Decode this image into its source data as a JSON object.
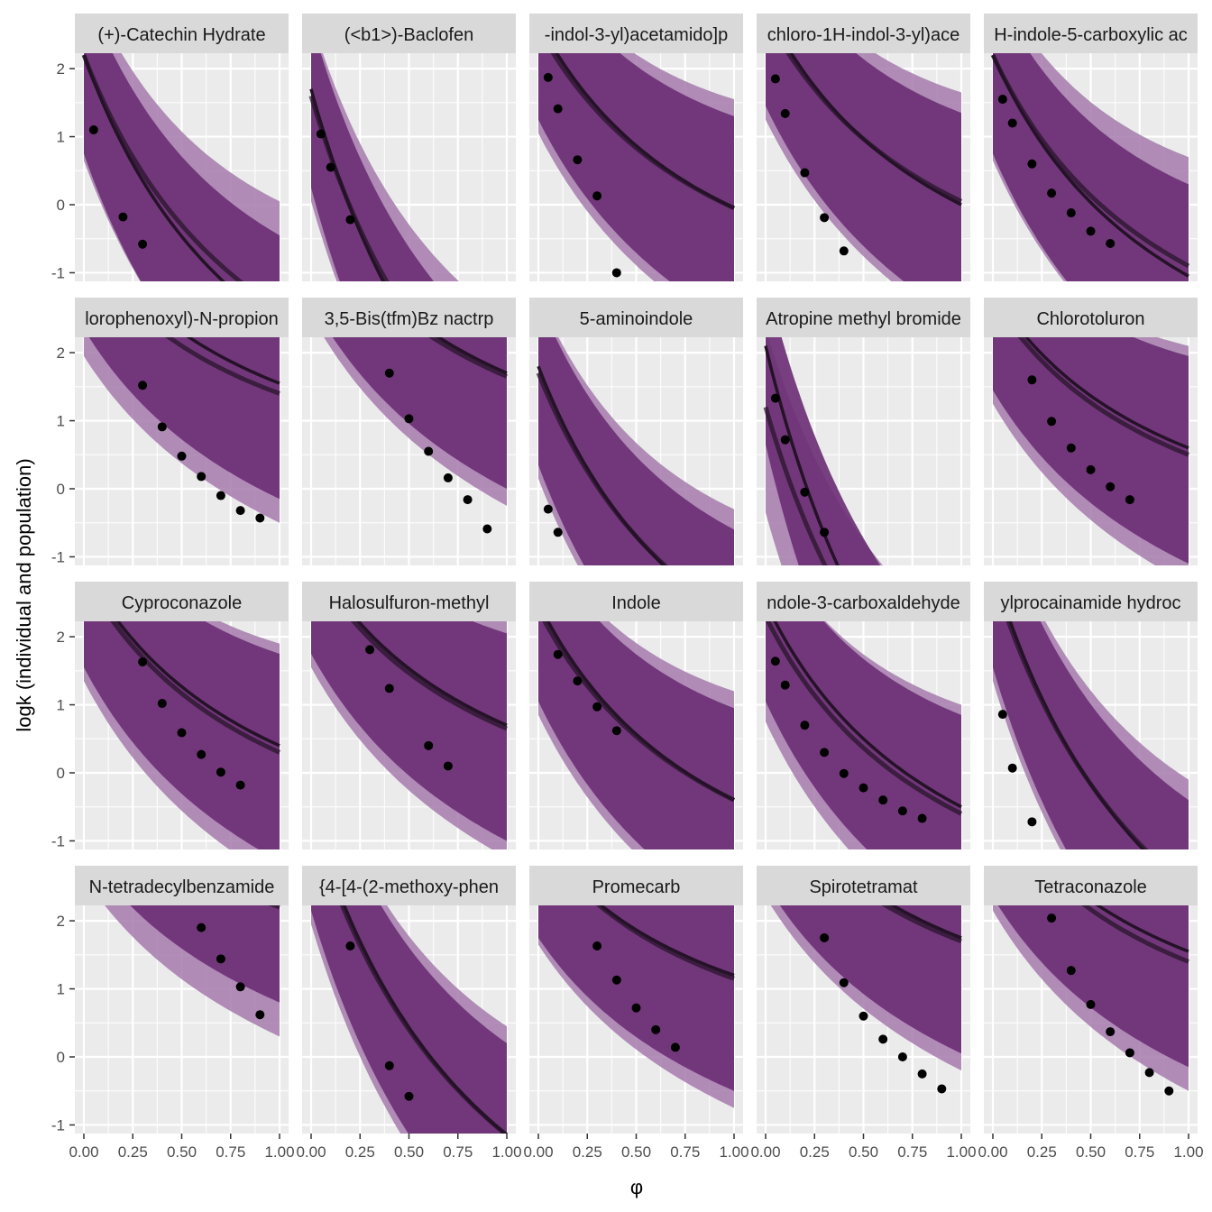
{
  "chart_data": {
    "type": "faceted-line-scatter",
    "xlabel": "φ",
    "ylabel": "logk (individual and population)",
    "xlim": [
      0,
      1
    ],
    "ylim": [
      -1.1,
      2.2
    ],
    "x_ticks": [
      "0.00",
      "0.25",
      "0.50",
      "0.75",
      "1.00"
    ],
    "y_ticks": [
      "2",
      "1",
      "0",
      "-1"
    ],
    "grid": true,
    "colors": {
      "panel_bg": "#ebebeb",
      "strip_bg": "#d9d9d9",
      "grid": "#ffffff",
      "band_individual": "#6d3075",
      "band_population": "#a57aad",
      "line": "#241227",
      "point": "#000000"
    },
    "panels": [
      {
        "title": "(+)-Catechin Hydrate",
        "k0": 2.2,
        "k1": 8.0,
        "pk0": 2.2,
        "pk1": 7.5,
        "pts": [
          [
            0.05,
            1.1
          ],
          [
            0.2,
            -0.18
          ],
          [
            0.3,
            -0.58
          ]
        ]
      },
      {
        "title": "(<b1>)-Baclofen",
        "k0": 1.7,
        "k1": 10.5,
        "pk0": 1.6,
        "pk1": 9.8,
        "pts": [
          [
            0.05,
            1.04
          ],
          [
            0.1,
            0.55
          ],
          [
            0.2,
            -0.22
          ]
        ]
      },
      {
        "title": "-indol-3-yl)acetamido]p",
        "k0": 2.7,
        "k1": 5.5,
        "pk0": 2.6,
        "pk1": 5.3,
        "pts": [
          [
            0.05,
            1.87
          ],
          [
            0.1,
            1.41
          ],
          [
            0.2,
            0.66
          ],
          [
            0.3,
            0.13
          ],
          [
            0.4,
            -1.0
          ]
        ]
      },
      {
        "title": "chloro-1H-indol-3-yl)ace",
        "k0": 2.9,
        "k1": 5.8,
        "pk0": 2.8,
        "pk1": 5.5,
        "pts": [
          [
            0.05,
            1.85
          ],
          [
            0.1,
            1.34
          ],
          [
            0.2,
            0.47
          ],
          [
            0.3,
            -0.19
          ],
          [
            0.4,
            -0.68
          ]
        ]
      },
      {
        "title": "H-indole-5-carboxylic ac",
        "k0": 2.2,
        "k1": 6.5,
        "pk0": 2.2,
        "pk1": 6.2,
        "pts": [
          [
            0.05,
            1.55
          ],
          [
            0.1,
            1.2
          ],
          [
            0.2,
            0.6
          ],
          [
            0.3,
            0.17
          ],
          [
            0.4,
            -0.12
          ],
          [
            0.5,
            -0.39
          ],
          [
            0.6,
            -0.57
          ]
        ]
      },
      {
        "title": "lorophenoxyl)-N-propion",
        "k0": 3.8,
        "k1": 4.5,
        "pk0": 3.5,
        "pk1": 4.2,
        "pts": [
          [
            0.3,
            1.52
          ],
          [
            0.4,
            0.91
          ],
          [
            0.5,
            0.48
          ],
          [
            0.6,
            0.18
          ],
          [
            0.7,
            -0.1
          ],
          [
            0.8,
            -0.32
          ],
          [
            0.9,
            -0.43
          ]
        ]
      },
      {
        "title": "3,5-Bis(tfm)Bz nactrp",
        "k0": 4.2,
        "k1": 5.0,
        "pk0": 4.1,
        "pk1": 4.9,
        "pts": [
          [
            0.4,
            1.7
          ],
          [
            0.5,
            1.03
          ],
          [
            0.6,
            0.55
          ],
          [
            0.7,
            0.16
          ],
          [
            0.8,
            -0.16
          ],
          [
            0.9,
            -0.59
          ]
        ]
      },
      {
        "title": "5-aminoindole",
        "k0": 1.8,
        "k1": 7.5,
        "pk0": 1.7,
        "pk1": 7.2,
        "pts": [
          [
            0.05,
            -0.3
          ],
          [
            0.1,
            -0.64
          ]
        ]
      },
      {
        "title": "Atropine methyl bromide",
        "k0": 2.1,
        "k1": 12.0,
        "pk0": 1.2,
        "pk1": 10.0,
        "pts": [
          [
            0.05,
            1.33
          ],
          [
            0.1,
            0.72
          ],
          [
            0.2,
            -0.05
          ],
          [
            0.3,
            -0.64
          ]
        ]
      },
      {
        "title": "Chlorotoluron",
        "k0": 2.9,
        "k1": 4.6,
        "pk0": 2.8,
        "pk1": 4.6,
        "pts": [
          [
            0.2,
            1.6
          ],
          [
            0.3,
            0.99
          ],
          [
            0.4,
            0.6
          ],
          [
            0.5,
            0.28
          ],
          [
            0.6,
            0.03
          ],
          [
            0.7,
            -0.16
          ]
        ]
      },
      {
        "title": "Cyproconazole",
        "k0": 3.0,
        "k1": 5.2,
        "pk0": 2.9,
        "pk1": 5.2,
        "pts": [
          [
            0.3,
            1.63
          ],
          [
            0.4,
            1.02
          ],
          [
            0.5,
            0.59
          ],
          [
            0.6,
            0.27
          ],
          [
            0.7,
            0.01
          ],
          [
            0.8,
            -0.18
          ]
        ]
      },
      {
        "title": "Halosulfuron-methyl",
        "k0": 3.2,
        "k1": 5.0,
        "pk0": 3.1,
        "pk1": 4.9,
        "pts": [
          [
            0.3,
            1.81
          ],
          [
            0.4,
            1.24
          ],
          [
            0.6,
            0.4
          ],
          [
            0.7,
            0.1
          ]
        ]
      },
      {
        "title": "Indole",
        "k0": 2.5,
        "k1": 5.8,
        "pk0": 2.4,
        "pk1": 5.6,
        "pts": [
          [
            0.1,
            1.74
          ],
          [
            0.2,
            1.35
          ],
          [
            0.3,
            0.97
          ],
          [
            0.4,
            0.62
          ]
        ]
      },
      {
        "title": "ndole-3-carboxaldehyde",
        "k0": 2.5,
        "k1": 6.0,
        "pk0": 2.3,
        "pk1": 5.8,
        "pts": [
          [
            0.05,
            1.64
          ],
          [
            0.1,
            1.29
          ],
          [
            0.2,
            0.7
          ],
          [
            0.3,
            0.3
          ],
          [
            0.4,
            -0.01
          ],
          [
            0.5,
            -0.22
          ],
          [
            0.6,
            -0.4
          ],
          [
            0.7,
            -0.56
          ],
          [
            0.8,
            -0.67
          ]
        ]
      },
      {
        "title": "ylprocainamide hydroc",
        "k0": 3.0,
        "k1": 9.5,
        "pk0": 2.9,
        "pk1": 9.2,
        "pts": [
          [
            0.05,
            0.86
          ],
          [
            0.1,
            0.07
          ],
          [
            0.2,
            -0.72
          ]
        ]
      },
      {
        "title": "N-tetradecylbenzamide",
        "k0": 4.5,
        "k1": 4.0,
        "pk0": 4.2,
        "pk1": 4.0,
        "pts": [
          [
            0.6,
            1.9
          ],
          [
            0.7,
            1.44
          ],
          [
            0.8,
            1.03
          ],
          [
            0.9,
            0.62
          ]
        ]
      },
      {
        "title": "{4-[4-(2-methoxy-phen",
        "k0": 3.6,
        "k1": 9.5,
        "pk0": 3.5,
        "pk1": 9.3,
        "pts": [
          [
            0.2,
            1.63
          ],
          [
            0.4,
            -0.13
          ],
          [
            0.5,
            -0.58
          ]
        ]
      },
      {
        "title": "Promecarb",
        "k0": 3.2,
        "k1": 4.0,
        "pk0": 3.2,
        "pk1": 4.1,
        "pts": [
          [
            0.3,
            1.63
          ],
          [
            0.4,
            1.13
          ],
          [
            0.5,
            0.72
          ],
          [
            0.6,
            0.4
          ],
          [
            0.7,
            0.14
          ]
        ]
      },
      {
        "title": "Spirotetramat",
        "k0": 4.0,
        "k1": 4.5,
        "pk0": 3.9,
        "pk1": 4.4,
        "pts": [
          [
            0.3,
            1.75
          ],
          [
            0.4,
            1.09
          ],
          [
            0.5,
            0.6
          ],
          [
            0.6,
            0.26
          ],
          [
            0.7,
            0.0
          ],
          [
            0.8,
            -0.25
          ],
          [
            0.9,
            -0.47
          ]
        ]
      },
      {
        "title": "Tetraconazole",
        "k0": 3.8,
        "k1": 4.5,
        "pk0": 3.7,
        "pk1": 4.6,
        "pts": [
          [
            0.3,
            2.04
          ],
          [
            0.4,
            1.27
          ],
          [
            0.5,
            0.77
          ],
          [
            0.6,
            0.37
          ],
          [
            0.7,
            0.06
          ],
          [
            0.8,
            -0.23
          ],
          [
            0.9,
            -0.5
          ]
        ]
      }
    ]
  }
}
